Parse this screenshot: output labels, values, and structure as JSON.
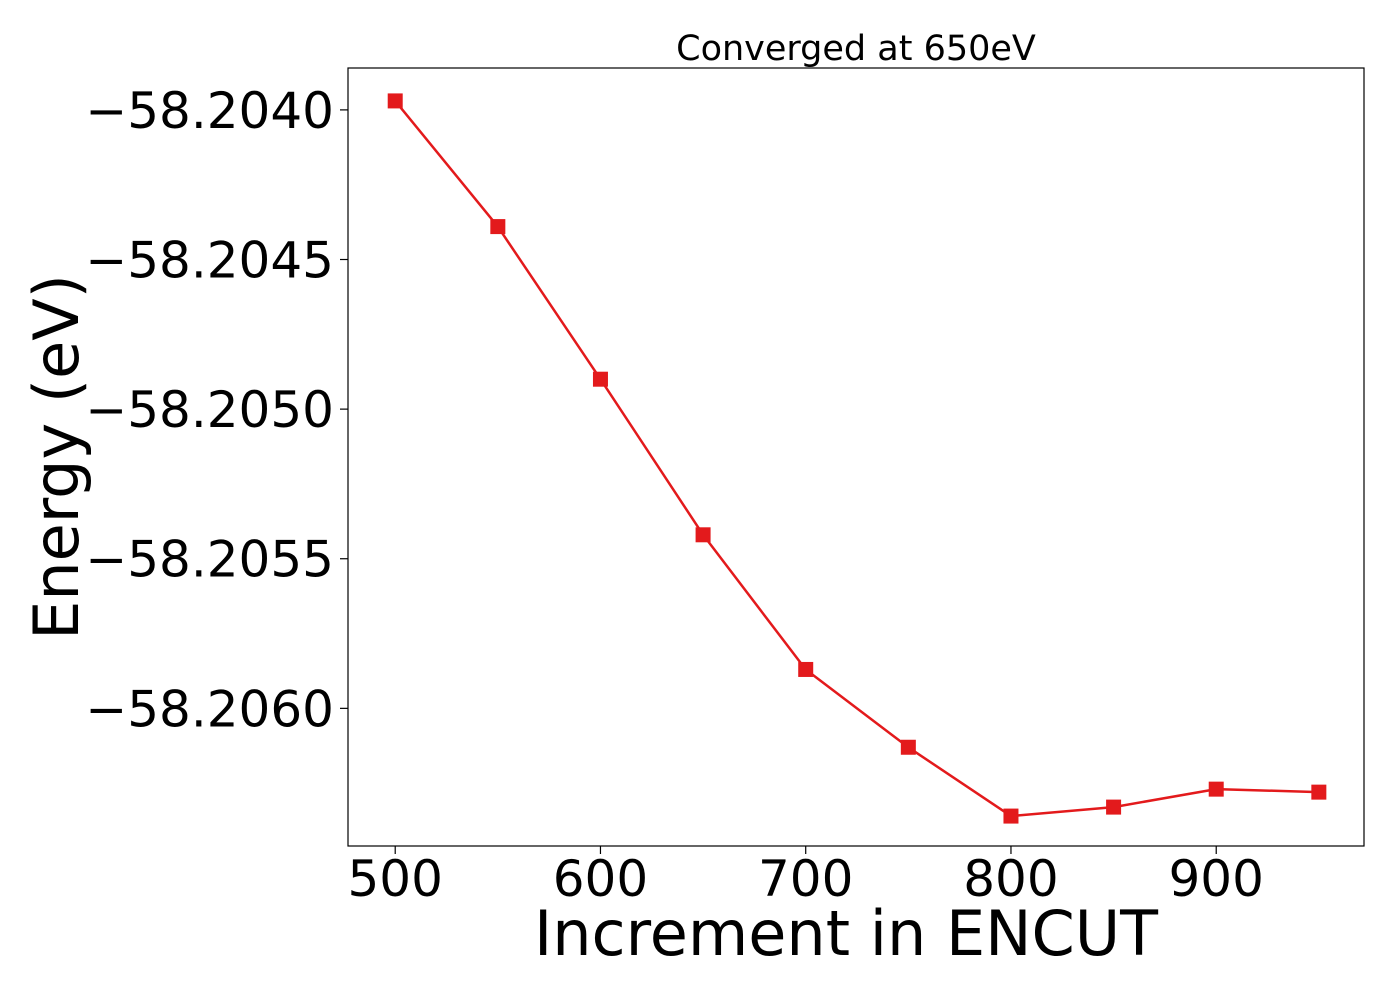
{
  "chart_data": {
    "type": "line",
    "title": "Converged at 650eV",
    "xlabel": "Increment in ENCUT",
    "ylabel": "Energy (eV)",
    "x": [
      500,
      550,
      600,
      650,
      700,
      750,
      800,
      850,
      900,
      950
    ],
    "series": [
      {
        "values": [
          -58.20397,
          -58.20439,
          -58.2049,
          -58.20542,
          -58.20587,
          -58.20613,
          -58.20636,
          -58.20633,
          -58.20627,
          -58.20628
        ],
        "color": "#e31a1c",
        "marker": "square"
      }
    ],
    "xlim": [
      477,
      972
    ],
    "ylim": [
      -58.20646,
      -58.20386
    ],
    "xticks": [
      500,
      600,
      700,
      800,
      900
    ],
    "xtick_labels": [
      "500",
      "600",
      "700",
      "800",
      "900"
    ],
    "yticks": [
      -58.204,
      -58.2045,
      -58.205,
      -58.2055,
      -58.206
    ],
    "ytick_labels": [
      "−58.2040",
      "−58.2045",
      "−58.2050",
      "−58.2055",
      "−58.2060"
    ],
    "grid": false,
    "legend": false
  }
}
